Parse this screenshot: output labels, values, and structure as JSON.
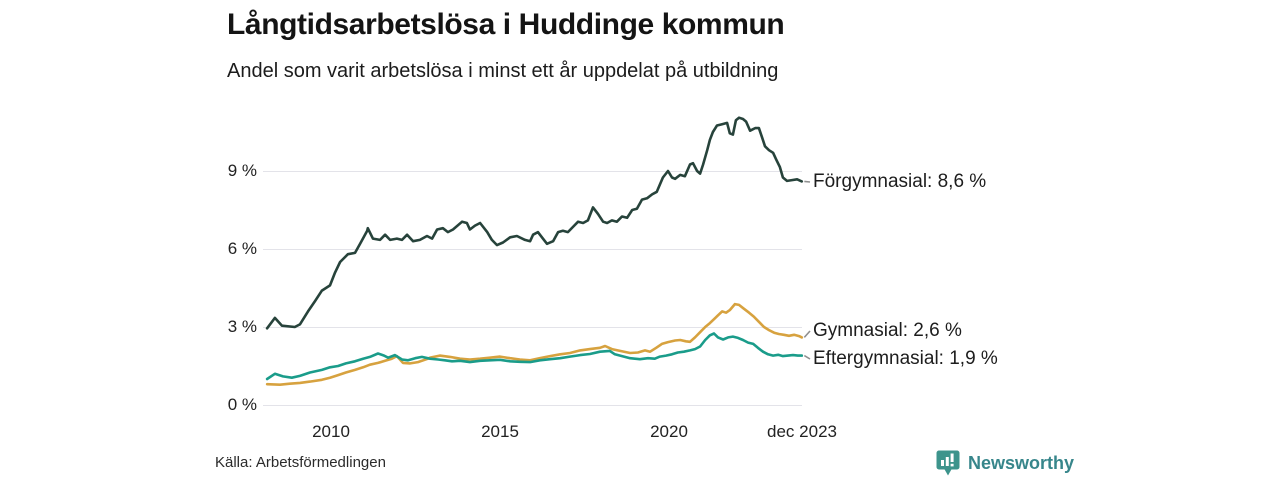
{
  "title": "Långtidsarbetslösa i Huddinge kommun",
  "subtitle": "Andel som varit arbetslösa i minst ett år uppdelat på utbildning",
  "source": "Källa: Arbetsförmedlingen",
  "branding": {
    "name": "Newsworthy",
    "icon": "newsworthy-speech-bubble-bar-chart-icon",
    "color": "#37868b"
  },
  "chart_data": {
    "type": "line",
    "title": "Långtidsarbetslösa i Huddinge kommun",
    "subtitle": "Andel som varit arbetslösa i minst ett år uppdelat på utbildning",
    "unit": "%",
    "grid": true,
    "legend_position": "end-of-line-labels-right",
    "x_axis": {
      "range": [
        2008.1,
        2023.95
      ],
      "ticks": [
        {
          "label": "2010",
          "value": 2010
        },
        {
          "label": "2015",
          "value": 2015
        },
        {
          "label": "2020",
          "value": 2020
        },
        {
          "label": "dec 2023",
          "value": 2023.93
        }
      ]
    },
    "y_axis": {
      "range": [
        0,
        11.5
      ],
      "ticks": [
        {
          "label": "9 %",
          "value": 9
        },
        {
          "label": "6 %",
          "value": 6
        },
        {
          "label": "3 %",
          "value": 3
        },
        {
          "label": "0 %",
          "value": 0
        }
      ]
    },
    "series": [
      {
        "name": "Förgymnasial",
        "end_label": "Förgymnasial: 8,6 %",
        "latest_value": "8,6 %",
        "color": "#27433b",
        "points": [
          [
            2008.11,
            2.95
          ],
          [
            2008.34,
            3.35
          ],
          [
            2008.55,
            3.05
          ],
          [
            2008.93,
            3.0
          ],
          [
            2009.08,
            3.1
          ],
          [
            2009.32,
            3.6
          ],
          [
            2009.53,
            4.0
          ],
          [
            2009.73,
            4.4
          ],
          [
            2009.97,
            4.6
          ],
          [
            2010.12,
            5.1
          ],
          [
            2010.27,
            5.5
          ],
          [
            2010.5,
            5.8
          ],
          [
            2010.71,
            5.85
          ],
          [
            2010.86,
            6.2
          ],
          [
            2011.07,
            6.7
          ],
          [
            2011.09,
            6.8
          ],
          [
            2011.24,
            6.4
          ],
          [
            2011.45,
            6.35
          ],
          [
            2011.6,
            6.55
          ],
          [
            2011.75,
            6.35
          ],
          [
            2011.95,
            6.4
          ],
          [
            2012.1,
            6.35
          ],
          [
            2012.25,
            6.55
          ],
          [
            2012.43,
            6.3
          ],
          [
            2012.63,
            6.35
          ],
          [
            2012.84,
            6.5
          ],
          [
            2012.99,
            6.4
          ],
          [
            2013.14,
            6.75
          ],
          [
            2013.31,
            6.8
          ],
          [
            2013.46,
            6.65
          ],
          [
            2013.61,
            6.75
          ],
          [
            2013.88,
            7.05
          ],
          [
            2014.02,
            7.0
          ],
          [
            2014.11,
            6.75
          ],
          [
            2014.26,
            6.9
          ],
          [
            2014.41,
            7.0
          ],
          [
            2014.62,
            6.65
          ],
          [
            2014.76,
            6.35
          ],
          [
            2014.91,
            6.15
          ],
          [
            2015.09,
            6.25
          ],
          [
            2015.3,
            6.45
          ],
          [
            2015.5,
            6.5
          ],
          [
            2015.74,
            6.35
          ],
          [
            2015.89,
            6.3
          ],
          [
            2015.98,
            6.55
          ],
          [
            2016.12,
            6.65
          ],
          [
            2016.27,
            6.4
          ],
          [
            2016.39,
            6.2
          ],
          [
            2016.57,
            6.3
          ],
          [
            2016.72,
            6.65
          ],
          [
            2016.86,
            6.7
          ],
          [
            2017.01,
            6.65
          ],
          [
            2017.16,
            6.85
          ],
          [
            2017.31,
            7.05
          ],
          [
            2017.46,
            7.0
          ],
          [
            2017.6,
            7.1
          ],
          [
            2017.75,
            7.6
          ],
          [
            2017.9,
            7.35
          ],
          [
            2018.05,
            7.05
          ],
          [
            2018.17,
            7.0
          ],
          [
            2018.31,
            7.1
          ],
          [
            2018.46,
            7.05
          ],
          [
            2018.61,
            7.25
          ],
          [
            2018.76,
            7.2
          ],
          [
            2018.91,
            7.5
          ],
          [
            2019.05,
            7.55
          ],
          [
            2019.2,
            7.9
          ],
          [
            2019.35,
            7.95
          ],
          [
            2019.5,
            8.1
          ],
          [
            2019.64,
            8.2
          ],
          [
            2019.82,
            8.75
          ],
          [
            2019.97,
            9.0
          ],
          [
            2020.09,
            8.75
          ],
          [
            2020.18,
            8.7
          ],
          [
            2020.33,
            8.85
          ],
          [
            2020.47,
            8.8
          ],
          [
            2020.62,
            9.25
          ],
          [
            2020.71,
            9.3
          ],
          [
            2020.83,
            9.0
          ],
          [
            2020.92,
            8.9
          ],
          [
            2021.01,
            9.25
          ],
          [
            2021.13,
            9.8
          ],
          [
            2021.21,
            10.2
          ],
          [
            2021.3,
            10.5
          ],
          [
            2021.42,
            10.75
          ],
          [
            2021.57,
            10.8
          ],
          [
            2021.72,
            10.85
          ],
          [
            2021.8,
            10.45
          ],
          [
            2021.89,
            10.4
          ],
          [
            2021.98,
            10.95
          ],
          [
            2022.07,
            11.05
          ],
          [
            2022.19,
            11.0
          ],
          [
            2022.28,
            10.9
          ],
          [
            2022.4,
            10.55
          ],
          [
            2022.55,
            10.65
          ],
          [
            2022.66,
            10.65
          ],
          [
            2022.75,
            10.3
          ],
          [
            2022.84,
            9.95
          ],
          [
            2022.96,
            9.8
          ],
          [
            2023.08,
            9.7
          ],
          [
            2023.17,
            9.45
          ],
          [
            2023.28,
            9.15
          ],
          [
            2023.37,
            8.75
          ],
          [
            2023.49,
            8.62
          ],
          [
            2023.64,
            8.65
          ],
          [
            2023.79,
            8.68
          ],
          [
            2023.93,
            8.6
          ]
        ]
      },
      {
        "name": "Gymnasial",
        "end_label": "Gymnasial: 2,6 %",
        "latest_value": "2,6 %",
        "color": "#d7a23f",
        "points": [
          [
            2008.11,
            0.8
          ],
          [
            2008.49,
            0.78
          ],
          [
            2008.78,
            0.82
          ],
          [
            2009.08,
            0.85
          ],
          [
            2009.38,
            0.9
          ],
          [
            2009.73,
            0.97
          ],
          [
            2009.97,
            1.05
          ],
          [
            2010.21,
            1.15
          ],
          [
            2010.44,
            1.25
          ],
          [
            2010.71,
            1.35
          ],
          [
            2010.95,
            1.45
          ],
          [
            2011.15,
            1.55
          ],
          [
            2011.39,
            1.62
          ],
          [
            2011.6,
            1.7
          ],
          [
            2011.8,
            1.78
          ],
          [
            2011.95,
            1.88
          ],
          [
            2012.13,
            1.62
          ],
          [
            2012.34,
            1.6
          ],
          [
            2012.57,
            1.65
          ],
          [
            2012.87,
            1.78
          ],
          [
            2012.93,
            1.82
          ],
          [
            2013.22,
            1.9
          ],
          [
            2013.52,
            1.85
          ],
          [
            2013.82,
            1.78
          ],
          [
            2014.11,
            1.75
          ],
          [
            2014.41,
            1.78
          ],
          [
            2014.7,
            1.82
          ],
          [
            2015.0,
            1.86
          ],
          [
            2015.3,
            1.8
          ],
          [
            2015.59,
            1.75
          ],
          [
            2015.89,
            1.72
          ],
          [
            2016.18,
            1.8
          ],
          [
            2016.48,
            1.88
          ],
          [
            2016.78,
            1.95
          ],
          [
            2017.07,
            2.0
          ],
          [
            2017.37,
            2.1
          ],
          [
            2017.66,
            2.15
          ],
          [
            2017.96,
            2.2
          ],
          [
            2018.11,
            2.27
          ],
          [
            2018.31,
            2.15
          ],
          [
            2018.55,
            2.08
          ],
          [
            2018.85,
            2.0
          ],
          [
            2019.08,
            2.02
          ],
          [
            2019.29,
            2.1
          ],
          [
            2019.44,
            2.05
          ],
          [
            2019.62,
            2.2
          ],
          [
            2019.79,
            2.35
          ],
          [
            2019.97,
            2.42
          ],
          [
            2020.18,
            2.48
          ],
          [
            2020.33,
            2.5
          ],
          [
            2020.5,
            2.45
          ],
          [
            2020.62,
            2.43
          ],
          [
            2020.77,
            2.6
          ],
          [
            2020.92,
            2.8
          ],
          [
            2021.07,
            3.0
          ],
          [
            2021.21,
            3.15
          ],
          [
            2021.33,
            3.3
          ],
          [
            2021.45,
            3.45
          ],
          [
            2021.57,
            3.6
          ],
          [
            2021.69,
            3.55
          ],
          [
            2021.8,
            3.65
          ],
          [
            2021.95,
            3.88
          ],
          [
            2022.07,
            3.85
          ],
          [
            2022.22,
            3.7
          ],
          [
            2022.37,
            3.55
          ],
          [
            2022.51,
            3.4
          ],
          [
            2022.66,
            3.2
          ],
          [
            2022.81,
            3.0
          ],
          [
            2022.96,
            2.88
          ],
          [
            2023.11,
            2.78
          ],
          [
            2023.25,
            2.73
          ],
          [
            2023.4,
            2.7
          ],
          [
            2023.55,
            2.66
          ],
          [
            2023.7,
            2.7
          ],
          [
            2023.85,
            2.65
          ],
          [
            2023.93,
            2.6
          ]
        ]
      },
      {
        "name": "Eftergymnasial",
        "end_label": "Eftergymnasial: 1,9 %",
        "latest_value": "1,9 %",
        "color": "#1a9c8a",
        "points": [
          [
            2008.11,
            1.0
          ],
          [
            2008.34,
            1.2
          ],
          [
            2008.58,
            1.1
          ],
          [
            2008.84,
            1.05
          ],
          [
            2009.08,
            1.12
          ],
          [
            2009.38,
            1.25
          ],
          [
            2009.73,
            1.35
          ],
          [
            2009.97,
            1.45
          ],
          [
            2010.21,
            1.5
          ],
          [
            2010.44,
            1.6
          ],
          [
            2010.71,
            1.68
          ],
          [
            2010.95,
            1.78
          ],
          [
            2011.15,
            1.85
          ],
          [
            2011.39,
            1.98
          ],
          [
            2011.57,
            1.9
          ],
          [
            2011.69,
            1.82
          ],
          [
            2011.89,
            1.92
          ],
          [
            2012.1,
            1.75
          ],
          [
            2012.28,
            1.72
          ],
          [
            2012.49,
            1.8
          ],
          [
            2012.69,
            1.85
          ],
          [
            2012.93,
            1.78
          ],
          [
            2013.17,
            1.75
          ],
          [
            2013.37,
            1.72
          ],
          [
            2013.58,
            1.68
          ],
          [
            2013.82,
            1.7
          ],
          [
            2014.11,
            1.65
          ],
          [
            2014.41,
            1.7
          ],
          [
            2014.7,
            1.72
          ],
          [
            2015.0,
            1.74
          ],
          [
            2015.3,
            1.68
          ],
          [
            2015.59,
            1.66
          ],
          [
            2015.89,
            1.65
          ],
          [
            2016.18,
            1.72
          ],
          [
            2016.48,
            1.76
          ],
          [
            2016.78,
            1.8
          ],
          [
            2017.07,
            1.86
          ],
          [
            2017.37,
            1.92
          ],
          [
            2017.66,
            1.96
          ],
          [
            2017.96,
            2.05
          ],
          [
            2018.25,
            2.08
          ],
          [
            2018.4,
            1.95
          ],
          [
            2018.61,
            1.88
          ],
          [
            2018.85,
            1.8
          ],
          [
            2019.14,
            1.76
          ],
          [
            2019.38,
            1.8
          ],
          [
            2019.58,
            1.78
          ],
          [
            2019.73,
            1.86
          ],
          [
            2019.91,
            1.9
          ],
          [
            2020.09,
            1.95
          ],
          [
            2020.26,
            2.02
          ],
          [
            2020.44,
            2.05
          ],
          [
            2020.62,
            2.1
          ],
          [
            2020.77,
            2.15
          ],
          [
            2020.92,
            2.25
          ],
          [
            2021.07,
            2.5
          ],
          [
            2021.21,
            2.68
          ],
          [
            2021.33,
            2.75
          ],
          [
            2021.45,
            2.6
          ],
          [
            2021.6,
            2.52
          ],
          [
            2021.75,
            2.6
          ],
          [
            2021.89,
            2.63
          ],
          [
            2022.04,
            2.58
          ],
          [
            2022.19,
            2.5
          ],
          [
            2022.34,
            2.4
          ],
          [
            2022.49,
            2.35
          ],
          [
            2022.63,
            2.2
          ],
          [
            2022.78,
            2.05
          ],
          [
            2022.93,
            1.95
          ],
          [
            2023.08,
            1.9
          ],
          [
            2023.23,
            1.93
          ],
          [
            2023.37,
            1.88
          ],
          [
            2023.52,
            1.9
          ],
          [
            2023.67,
            1.92
          ],
          [
            2023.81,
            1.9
          ],
          [
            2023.93,
            1.9
          ]
        ]
      }
    ]
  }
}
